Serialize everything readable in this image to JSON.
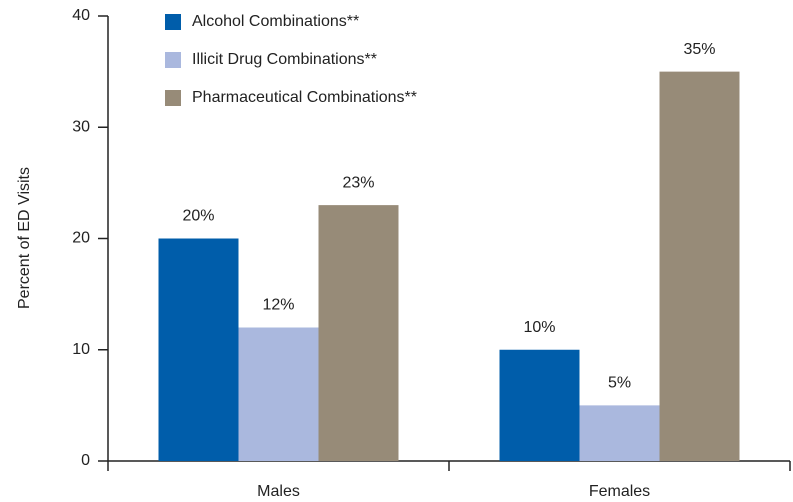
{
  "chart_data": {
    "type": "bar",
    "y_label": "Percent of ED Visits",
    "categories": [
      "Males",
      "Females"
    ],
    "series": [
      {
        "name": "Alcohol Combinations**",
        "color": "#005daa",
        "values": [
          20,
          10
        ],
        "value_labels": [
          "20%",
          "10%"
        ]
      },
      {
        "name": "Illicit Drug Combinations**",
        "color": "#aab8de",
        "values": [
          12,
          5
        ],
        "value_labels": [
          "12%",
          "5%"
        ]
      },
      {
        "name": "Pharmaceutical Combinations**",
        "color": "#978b78",
        "values": [
          23,
          35
        ],
        "value_labels": [
          "23%",
          "35%"
        ]
      }
    ],
    "ylim": [
      0,
      40
    ],
    "yticks": [
      0,
      10,
      20,
      30,
      40
    ],
    "grid": false
  }
}
